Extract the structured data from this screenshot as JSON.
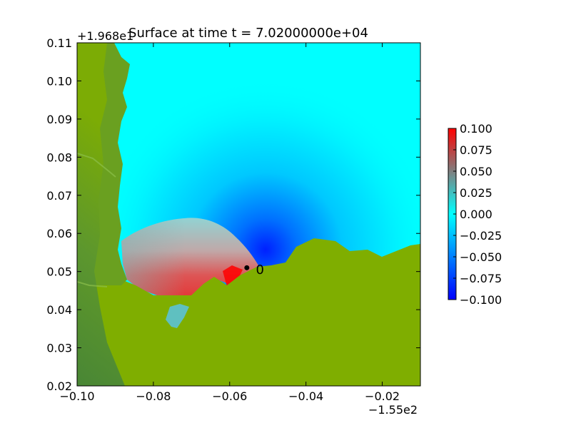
{
  "chart_data": {
    "type": "heatmap",
    "title": "Surface at time t = 7.02000000e+04",
    "x": {
      "range": [
        -0.1,
        -0.01
      ],
      "ticks": [
        -0.1,
        -0.08,
        -0.06,
        -0.04,
        -0.02
      ],
      "tick_labels": [
        "−0.10",
        "−0.08",
        "−0.06",
        "−0.04",
        "−0.02"
      ],
      "offset_label": "−1.55e2"
    },
    "y": {
      "range": [
        0.02,
        0.11
      ],
      "ticks": [
        0.02,
        0.03,
        0.04,
        0.05,
        0.06,
        0.07,
        0.08,
        0.09,
        0.1,
        0.11
      ],
      "tick_labels": [
        "0.02",
        "0.03",
        "0.04",
        "0.05",
        "0.06",
        "0.07",
        "0.08",
        "0.09",
        "0.10",
        "0.11"
      ],
      "offset_label": "+1.968e1"
    },
    "colorbar": {
      "range": [
        -0.1,
        0.1
      ],
      "ticks": [
        0.1,
        0.075,
        0.05,
        0.025,
        0.0,
        -0.025,
        -0.05,
        -0.075,
        -0.1
      ],
      "tick_labels": [
        "0.100",
        "0.075",
        "0.050",
        "0.025",
        "0.000",
        "−0.025",
        "−0.050",
        "−0.075",
        "−0.100"
      ],
      "colors": [
        "#0000ff",
        "#00ffff",
        "#ff0000"
      ]
    },
    "land_color": "#7fae00",
    "annotations": [
      {
        "type": "marker",
        "label": "",
        "x": -0.0555,
        "y": 0.051
      },
      {
        "type": "text",
        "label": "0",
        "x": -0.052,
        "y": 0.052
      }
    ]
  }
}
